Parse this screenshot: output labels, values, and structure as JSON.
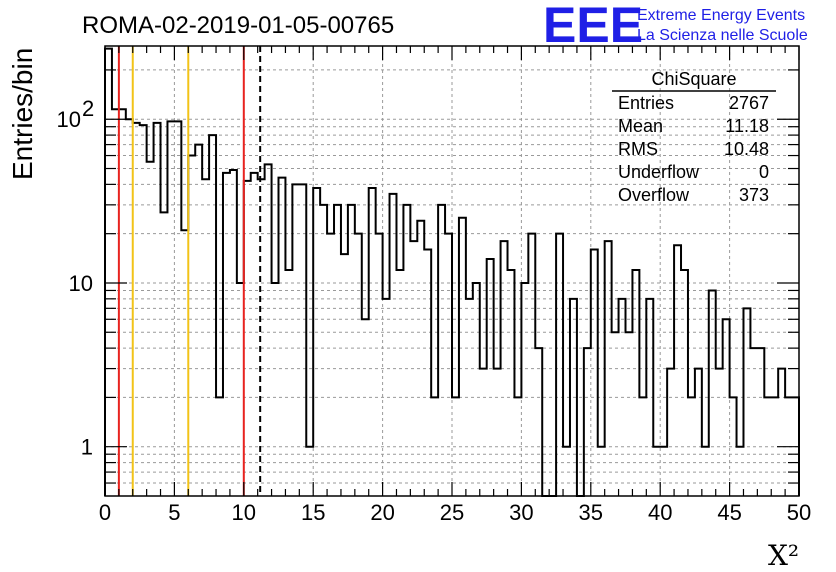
{
  "chart_data": {
    "type": "histogram",
    "title": "ROMA-02-2019-01-05-00765",
    "xlabel": "X²",
    "ylabel": "Entries/bin",
    "xlim": [
      0,
      50
    ],
    "ylim": [
      0.5,
      280
    ],
    "y_scale": "log",
    "grid": true,
    "bin_width": 0.5,
    "x_ticks": [
      "0",
      "5",
      "10",
      "15",
      "20",
      "25",
      "30",
      "35",
      "40",
      "45",
      "50"
    ],
    "y_ticks": [
      {
        "value": 1,
        "label": "1"
      },
      {
        "value": 10,
        "label": "10"
      },
      {
        "value": 100,
        "label": "10",
        "exponent": "2"
      }
    ],
    "values": [
      270,
      115,
      115,
      100,
      95,
      92,
      55,
      95,
      27,
      97,
      97,
      21,
      60,
      70,
      43,
      80,
      2,
      47,
      49,
      10,
      42,
      47,
      43,
      53,
      10,
      44,
      12,
      40,
      40,
      1,
      38,
      30,
      20,
      30,
      15,
      30,
      20,
      6,
      38,
      20,
      8,
      35,
      12,
      30,
      18,
      24,
      16,
      2,
      30,
      20,
      2,
      25,
      8,
      10,
      3,
      14,
      3,
      18,
      12,
      2,
      10,
      20,
      4,
      0.5,
      0.5,
      20,
      1,
      8,
      0.5,
      4,
      16,
      1,
      18,
      5,
      8,
      5,
      12,
      2,
      8,
      1,
      1,
      3,
      17,
      12,
      2,
      3,
      1,
      9,
      3,
      6,
      2,
      1,
      7,
      4,
      4,
      2,
      2,
      3,
      2,
      2
    ],
    "lines": [
      {
        "x": 1,
        "color": "#e8231f",
        "style": "solid"
      },
      {
        "x": 2,
        "color": "#f2c318",
        "style": "solid"
      },
      {
        "x": 6,
        "color": "#f2c318",
        "style": "solid"
      },
      {
        "x": 10,
        "color": "#e8231f",
        "style": "solid"
      },
      {
        "x": 11.18,
        "color": "#000000",
        "style": "dashed"
      }
    ],
    "stats": {
      "name": "ChiSquare",
      "rows": [
        {
          "label": "Entries",
          "value": "2767"
        },
        {
          "label": "Mean",
          "value": "11.18"
        },
        {
          "label": "RMS",
          "value": "10.48"
        },
        {
          "label": "Underflow",
          "value": "0"
        },
        {
          "label": "Overflow",
          "value": "373"
        }
      ]
    }
  },
  "logo": {
    "text": "EEE",
    "line1": "Extreme Energy Events",
    "line2": "La Scienza nelle Scuole",
    "color": "#1f1fe6"
  }
}
